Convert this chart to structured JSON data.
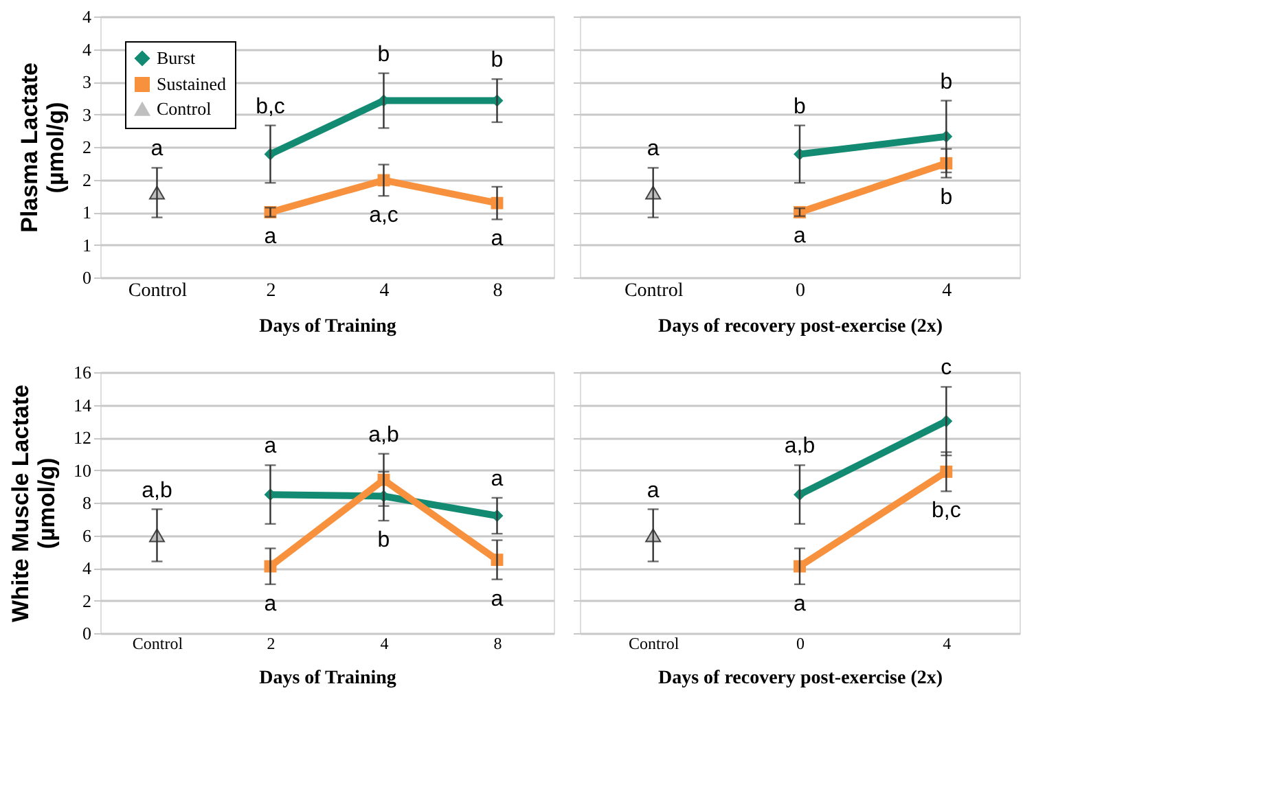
{
  "chart_data": [
    {
      "type": "line",
      "categories": [
        "Control",
        "2",
        "4",
        "8"
      ],
      "xlabel": "Days of Training",
      "ylabel": "Plasma Lactate (µmol/g)",
      "ylim": [
        0,
        4
      ],
      "yticks": [
        0,
        {
          "value": 0.5,
          "label": "1"
        },
        1,
        {
          "value": 1.5,
          "label": "2"
        },
        2,
        {
          "value": 2.5,
          "label": "3"
        },
        3,
        {
          "value": 3.5,
          "label": "4"
        },
        4
      ],
      "grid": "y",
      "legend": "top left",
      "series": [
        {
          "name": "Burst",
          "marker": "diamond",
          "color": "#138a72",
          "values": [
            null,
            1.89,
            2.71,
            2.71
          ],
          "errors": [
            null,
            0.44,
            0.42,
            0.33
          ]
        },
        {
          "name": "Sustained",
          "marker": "square",
          "color": "#f7913d",
          "values": [
            null,
            1.0,
            1.49,
            1.14
          ],
          "errors": [
            null,
            0.07,
            0.24,
            0.25
          ]
        },
        {
          "name": "Control",
          "type": "scatter",
          "marker": "triangle",
          "color": "#bfbfbf",
          "values": [
            1.3,
            null,
            null,
            null
          ],
          "errors": [
            0.38,
            null,
            null,
            null
          ]
        }
      ],
      "annotations": [
        {
          "text": "a",
          "x": "Control",
          "y": 1.3
        },
        {
          "text": "b,c",
          "x": "2",
          "y": 1.89
        },
        {
          "text": "a",
          "x": "2",
          "y": 1.0
        },
        {
          "text": "b",
          "x": "4",
          "y": 2.71
        },
        {
          "text": "a,c",
          "x": "4",
          "y": 1.49
        },
        {
          "text": "b",
          "x": "8",
          "y": 2.71
        },
        {
          "text": "a",
          "x": "8",
          "y": 1.14
        }
      ]
    },
    {
      "type": "line",
      "categories": [
        "Control",
        "0",
        "4"
      ],
      "xlabel": "Days of recovery post-exercise (2x)",
      "ylim": [
        0,
        4
      ],
      "yticks": [
        0,
        0.5,
        1,
        1.5,
        2,
        2.5,
        3,
        3.5,
        4
      ],
      "grid": "y",
      "tick_labels": "x",
      "series": [
        {
          "marker": "diamond",
          "color": "#138a72",
          "values": [
            null,
            1.89,
            2.16
          ],
          "errors": [
            null,
            0.44,
            0.55
          ]
        },
        {
          "marker": "square",
          "color": "#f7913d",
          "values": [
            null,
            1.0,
            1.75
          ],
          "errors": [
            null,
            0.06,
            0.22
          ]
        },
        {
          "type": "scatter",
          "marker": "triangle",
          "color": "#bfbfbf",
          "values": [
            1.3,
            null,
            null
          ],
          "errors": [
            0.38,
            null,
            null
          ]
        }
      ],
      "annotations": [
        {
          "text": "a",
          "x": "Control",
          "y": 1.3
        },
        {
          "text": "b",
          "x": "0",
          "y": 1.89
        },
        {
          "text": "a",
          "x": "0",
          "y": 1.0
        },
        {
          "text": "b",
          "x": "4",
          "y": 2.16
        },
        {
          "text": "b",
          "x": "4",
          "y": 1.75
        }
      ]
    },
    {
      "type": "line",
      "categories": [
        "Control",
        "2",
        "4",
        "8"
      ],
      "xlabel": "Days of Training",
      "ylabel": "White Muscle Lactate (µmol/g)",
      "ylim": [
        0,
        16
      ],
      "yticks": [
        0,
        2,
        4,
        6,
        8,
        10,
        12,
        14,
        16
      ],
      "grid": "y",
      "series": [
        {
          "marker": "diamond",
          "color": "#138a72",
          "values": [
            null,
            8.5,
            8.4,
            7.2
          ],
          "errors": [
            null,
            1.8,
            1.5,
            1.1
          ]
        },
        {
          "marker": "square",
          "color": "#f7913d",
          "values": [
            null,
            4.1,
            9.4,
            4.5
          ],
          "errors": [
            null,
            1.1,
            1.6,
            1.2
          ]
        },
        {
          "type": "scatter",
          "marker": "triangle",
          "color": "#bfbfbf",
          "values": [
            6.0,
            null,
            null,
            null
          ],
          "errors": [
            1.6,
            null,
            null,
            null
          ]
        }
      ],
      "annotations": [
        {
          "text": "a,b",
          "x": "Control",
          "y": 6.0
        },
        {
          "text": "a",
          "x": "2",
          "y": 8.5
        },
        {
          "text": "a",
          "x": "2",
          "y": 4.1
        },
        {
          "text": "b",
          "x": "4",
          "y": 8.4
        },
        {
          "text": "a,b",
          "x": "4",
          "y": 9.4
        },
        {
          "text": "a",
          "x": "8",
          "y": 7.2
        },
        {
          "text": "a",
          "x": "8",
          "y": 4.5
        }
      ]
    },
    {
      "type": "line",
      "categories": [
        "Control",
        "0",
        "4"
      ],
      "xlabel": "Days of recovery post-exercise (2x)",
      "ylim": [
        0,
        16
      ],
      "yticks": [
        0,
        2,
        4,
        6,
        8,
        10,
        12,
        14,
        16
      ],
      "grid": "y",
      "tick_labels": "x",
      "series": [
        {
          "marker": "diamond",
          "color": "#138a72",
          "values": [
            null,
            8.5,
            13.0
          ],
          "errors": [
            null,
            1.8,
            2.1
          ]
        },
        {
          "marker": "square",
          "color": "#f7913d",
          "values": [
            null,
            4.1,
            9.9
          ],
          "errors": [
            null,
            1.1,
            1.2
          ]
        },
        {
          "type": "scatter",
          "marker": "triangle",
          "color": "#bfbfbf",
          "values": [
            6.0,
            null,
            null
          ],
          "errors": [
            1.6,
            null,
            null
          ]
        }
      ],
      "annotations": [
        {
          "text": "a",
          "x": "Control",
          "y": 6.0
        },
        {
          "text": "a,b",
          "x": "0",
          "y": 8.5
        },
        {
          "text": "a",
          "x": "0",
          "y": 4.1
        },
        {
          "text": "c",
          "x": "4",
          "y": 13.0
        },
        {
          "text": "b,c",
          "x": "4",
          "y": 9.9
        }
      ]
    }
  ]
}
